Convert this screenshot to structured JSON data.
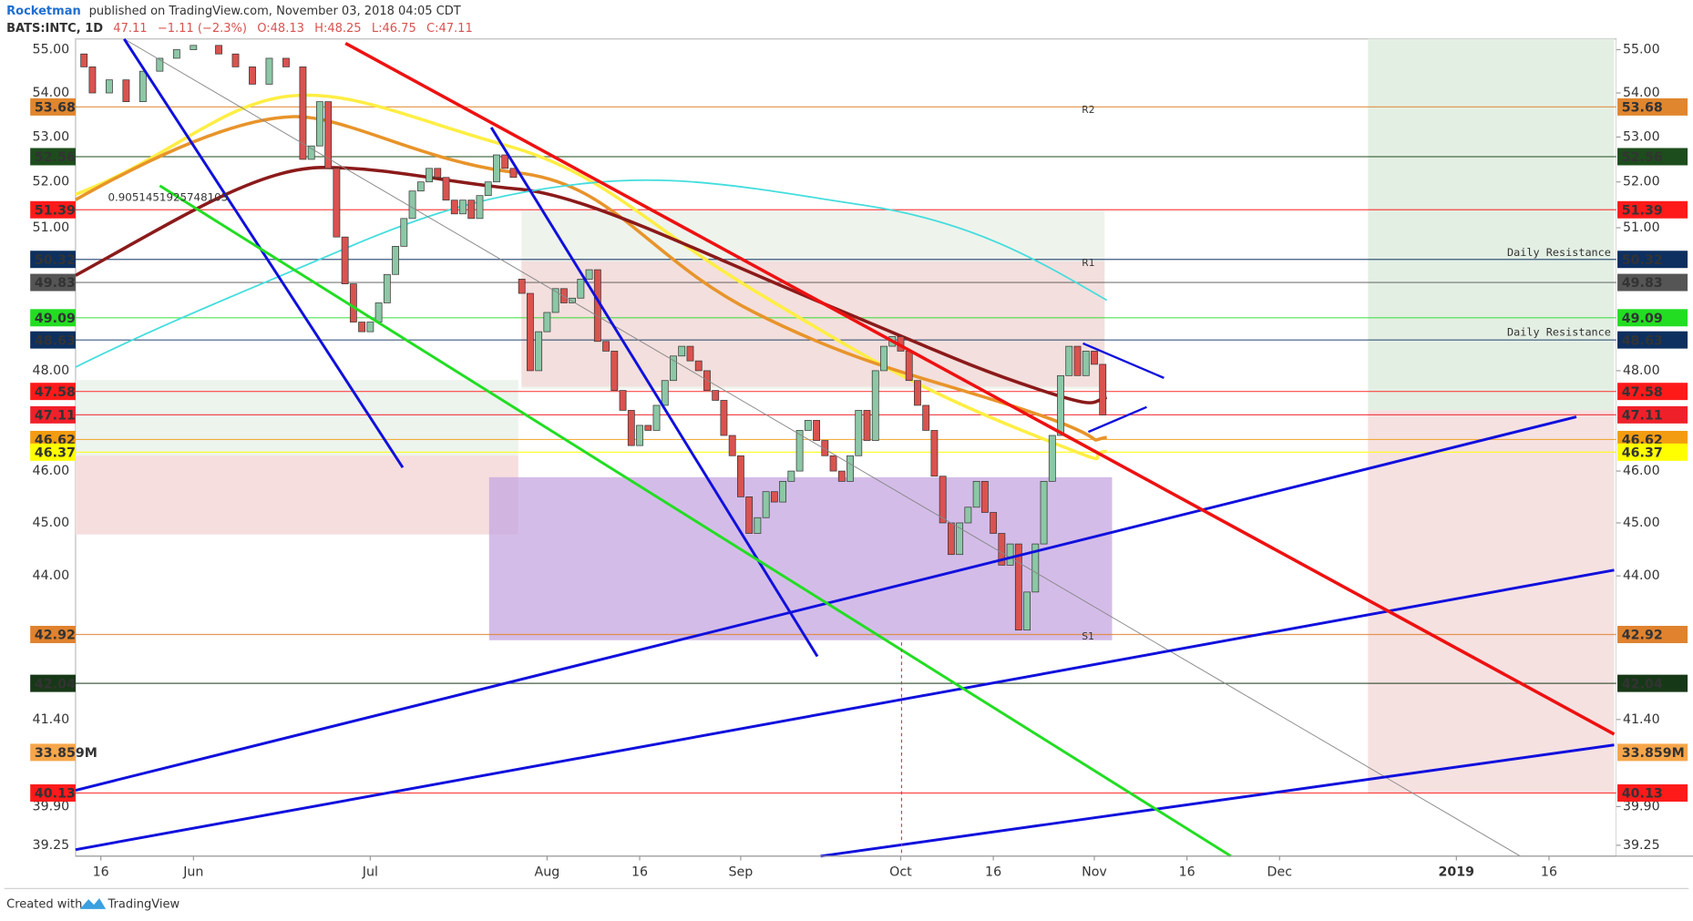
{
  "header": {
    "author": "Rocketman",
    "published": "published on TradingView.com, November 03, 2018 04:05 CDT",
    "symbol": "BATS:INTC, 1D",
    "last": "47.11",
    "change": "−1.11 (−2.3%)",
    "open": "O:48.13",
    "high": "H:48.25",
    "low": "L:46.75",
    "close": "C:47.11"
  },
  "footer": {
    "created": "Created with",
    "brand": "TradingView"
  },
  "chart_data": {
    "type": "candlestick",
    "log": true,
    "ylim": [
      39.07,
      55.25
    ],
    "xlim": [
      8,
      191
    ],
    "yticks": [
      {
        "value": 55,
        "label": "55.00"
      },
      {
        "value": 54,
        "label": "54.00"
      },
      {
        "value": 53,
        "label": "53.00"
      },
      {
        "value": 52,
        "label": "52.00"
      },
      {
        "value": 51,
        "label": "51.00"
      },
      {
        "value": 48,
        "label": "48.00"
      },
      {
        "value": 46,
        "label": "46.00"
      },
      {
        "value": 45,
        "label": "45.00"
      },
      {
        "value": 44,
        "label": "44.00"
      },
      {
        "value": 41.4,
        "label": "41.40"
      },
      {
        "value": 39.9,
        "label": "39.90"
      },
      {
        "value": 39.25,
        "label": "39.25"
      }
    ],
    "xticks": [
      {
        "value": 11,
        "label": "16"
      },
      {
        "value": 22,
        "label": "Jun"
      },
      {
        "value": 43,
        "label": "Jul"
      },
      {
        "value": 64,
        "label": "Aug"
      },
      {
        "value": 75,
        "label": "16"
      },
      {
        "value": 87,
        "label": "Sep"
      },
      {
        "value": 106,
        "label": "Oct"
      },
      {
        "value": 117,
        "label": "16"
      },
      {
        "value": 129,
        "label": "Nov"
      },
      {
        "value": 140,
        "label": "16"
      },
      {
        "value": 151,
        "label": "Dec"
      },
      {
        "value": 172,
        "label": "2019"
      },
      {
        "value": 183,
        "label": "16"
      }
    ],
    "up_color": "#8cc7a6",
    "down_color": "#d9534f",
    "x": [
      9,
      10,
      12,
      14,
      16,
      18,
      20,
      22,
      25,
      27,
      29,
      31,
      33,
      35,
      36,
      37,
      38,
      39,
      40,
      41,
      42,
      43,
      44,
      45,
      46,
      47,
      48,
      49,
      50,
      51,
      52,
      53,
      54,
      55,
      56,
      57,
      58,
      59,
      60,
      61,
      62,
      63,
      64,
      65,
      66,
      67,
      68,
      69,
      70,
      71,
      72,
      73,
      74,
      75,
      76,
      77,
      78,
      79,
      80,
      81,
      82,
      83,
      84,
      85,
      86,
      87,
      88,
      89,
      90,
      91,
      92,
      93,
      94,
      95,
      96,
      97,
      98,
      99,
      100,
      101,
      102,
      103,
      104,
      105,
      106,
      107,
      108,
      109,
      110,
      111,
      112,
      113,
      114,
      115,
      116,
      117,
      118,
      119,
      120,
      121,
      122,
      123,
      124,
      125,
      126,
      127,
      128,
      129,
      130
    ],
    "open": [
      54.9,
      54.6,
      54.0,
      54.3,
      53.8,
      54.5,
      54.8,
      55.0,
      55.1,
      54.9,
      54.6,
      54.2,
      54.8,
      54.6,
      52.5,
      52.8,
      53.8,
      52.3,
      50.8,
      49.8,
      49.0,
      48.8,
      49.0,
      49.4,
      50.0,
      50.6,
      51.2,
      51.8,
      52.0,
      52.3,
      52.1,
      51.6,
      51.3,
      51.6,
      51.2,
      51.7,
      52.0,
      52.6,
      52.3,
      49.9,
      49.6,
      48.0,
      48.8,
      49.2,
      49.7,
      49.4,
      49.5,
      49.9,
      50.1,
      48.6,
      48.4,
      47.6,
      47.2,
      46.5,
      46.9,
      46.8,
      47.3,
      47.8,
      48.3,
      48.5,
      48.2,
      48.0,
      47.6,
      47.4,
      46.7,
      46.3,
      45.5,
      44.8,
      45.1,
      45.6,
      45.4,
      45.8,
      46.0,
      46.8,
      47.0,
      46.6,
      46.3,
      46.0,
      45.8,
      46.3,
      47.2,
      46.6,
      48.0,
      48.5,
      48.7,
      48.4,
      47.8,
      47.3,
      46.8,
      45.9,
      45.0,
      44.4,
      45.0,
      45.3,
      45.8,
      45.2,
      44.8,
      44.2,
      44.6,
      43.0,
      43.7,
      44.6,
      45.8,
      46.7,
      47.9,
      48.5,
      47.9,
      48.4,
      48.13
    ],
    "close": [
      54.6,
      54.0,
      54.3,
      53.8,
      54.5,
      54.8,
      55.0,
      55.1,
      54.9,
      54.6,
      54.2,
      54.8,
      54.6,
      52.5,
      52.8,
      53.8,
      52.3,
      50.8,
      49.8,
      49.0,
      48.8,
      49.0,
      49.4,
      50.0,
      50.6,
      51.2,
      51.8,
      52.0,
      52.3,
      52.1,
      51.6,
      51.3,
      51.6,
      51.2,
      51.7,
      52.0,
      52.6,
      52.3,
      52.1,
      49.6,
      48.0,
      48.8,
      49.2,
      49.7,
      49.4,
      49.5,
      49.9,
      50.1,
      48.6,
      48.4,
      47.6,
      47.2,
      46.5,
      46.9,
      46.8,
      47.3,
      47.8,
      48.3,
      48.5,
      48.2,
      48.0,
      47.6,
      47.4,
      46.7,
      46.3,
      45.5,
      44.8,
      45.1,
      45.6,
      45.4,
      45.8,
      46.0,
      46.8,
      47.0,
      46.6,
      46.3,
      46.0,
      45.8,
      46.3,
      47.2,
      46.6,
      48.0,
      48.5,
      48.7,
      48.4,
      47.8,
      47.3,
      46.8,
      45.9,
      45.0,
      44.4,
      45.0,
      45.3,
      45.8,
      45.2,
      44.8,
      44.2,
      44.6,
      43.0,
      43.7,
      44.6,
      45.8,
      46.7,
      47.9,
      48.5,
      47.9,
      48.4,
      48.13,
      47.11
    ],
    "levels": [
      {
        "value": 53.68,
        "label": "53.68",
        "color": "#e0862e"
      },
      {
        "value": 52.56,
        "label": "52.56",
        "color": "#1d4d1d"
      },
      {
        "value": 51.39,
        "label": "51.39",
        "color": "#ff1a1a"
      },
      {
        "value": 50.32,
        "label": "50.32",
        "color": "#0d3060"
      },
      {
        "value": 49.83,
        "label": "49.83",
        "color": "#555555"
      },
      {
        "value": 49.09,
        "label": "49.09",
        "color": "#22dd22"
      },
      {
        "value": 48.63,
        "label": "48.63",
        "color": "#0d3060"
      },
      {
        "value": 47.58,
        "label": "47.58",
        "color": "#ff1a1a"
      },
      {
        "value": 47.11,
        "label": "47.11",
        "color": "#f0202a"
      },
      {
        "value": 46.62,
        "label": "46.62",
        "color": "#f39c12"
      },
      {
        "value": 46.37,
        "label": "46.37",
        "color": "#ffff00"
      },
      {
        "value": 42.92,
        "label": "42.92",
        "color": "#e0822e"
      },
      {
        "value": 42.04,
        "label": "42.04",
        "color": "#173817"
      },
      {
        "value": 40.13,
        "label": "40.13",
        "color": "#ff1a1a"
      }
    ],
    "y2lim": [
      0,
      68000000
    ],
    "volume_tag": {
      "value": 33859000,
      "label": "33.859M",
      "color": "#f7a64a"
    },
    "annotations": [
      "Daily Resistance",
      "Daily Resistance",
      "R2",
      "R1",
      "S1",
      "0.9051451925748103"
    ]
  }
}
